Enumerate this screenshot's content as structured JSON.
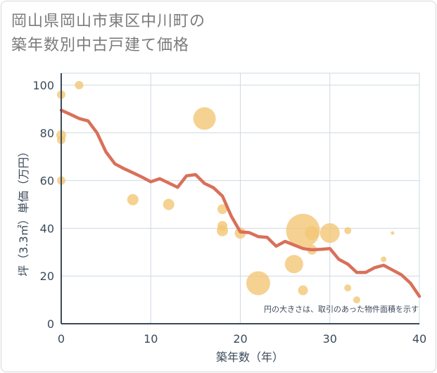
{
  "title_lines": [
    "岡山県岡山市東区中川町の",
    "築年数別中古戸建て価格"
  ],
  "chart_data": {
    "type": "scatter",
    "title": "岡山県岡山市東区中川町の築年数別中古戸建て価格",
    "xlabel": "築年数（年）",
    "ylabel": "坪（3.3㎡）単価（万円）",
    "xlim": [
      0,
      40
    ],
    "ylim": [
      0,
      105
    ],
    "xticks": [
      0,
      10,
      20,
      30,
      40
    ],
    "yticks": [
      0,
      20,
      40,
      60,
      80,
      100
    ],
    "grid": true,
    "note": "円の大きさは、取引のあった物件面積を示す",
    "colors": {
      "bubble": "#f3c777",
      "line": "#d9705a",
      "grid": "#cfd8e2",
      "axis": "#3b4a5a"
    },
    "bubbles": [
      {
        "x": 0,
        "y": 96,
        "size": 6
      },
      {
        "x": 0,
        "y": 79,
        "size": 7
      },
      {
        "x": 0,
        "y": 77,
        "size": 6
      },
      {
        "x": 0,
        "y": 60,
        "size": 6
      },
      {
        "x": 2,
        "y": 100,
        "size": 6
      },
      {
        "x": 8,
        "y": 52,
        "size": 8
      },
      {
        "x": 12,
        "y": 50,
        "size": 8
      },
      {
        "x": 16,
        "y": 86,
        "size": 16
      },
      {
        "x": 18,
        "y": 48,
        "size": 7
      },
      {
        "x": 18,
        "y": 41,
        "size": 7
      },
      {
        "x": 18,
        "y": 39,
        "size": 8
      },
      {
        "x": 20,
        "y": 38,
        "size": 8
      },
      {
        "x": 22,
        "y": 17,
        "size": 17
      },
      {
        "x": 26,
        "y": 25,
        "size": 13
      },
      {
        "x": 27,
        "y": 14,
        "size": 7
      },
      {
        "x": 27,
        "y": 39,
        "size": 24
      },
      {
        "x": 28,
        "y": 38,
        "size": 10
      },
      {
        "x": 28,
        "y": 31,
        "size": 7
      },
      {
        "x": 30,
        "y": 38,
        "size": 14
      },
      {
        "x": 32,
        "y": 39,
        "size": 5
      },
      {
        "x": 32,
        "y": 15,
        "size": 5
      },
      {
        "x": 33,
        "y": 10,
        "size": 5
      },
      {
        "x": 36,
        "y": 27,
        "size": 4
      },
      {
        "x": 37,
        "y": 38,
        "size": 2.5
      }
    ],
    "trend": {
      "x": [
        0,
        1,
        2,
        3,
        4,
        5,
        6,
        7,
        8,
        9,
        10,
        11,
        12,
        13,
        14,
        15,
        16,
        17,
        18,
        19,
        20,
        21,
        22,
        23,
        24,
        25,
        26,
        27,
        28,
        29,
        30,
        31,
        32,
        33,
        34,
        35,
        36,
        37,
        38,
        39,
        40
      ],
      "y": [
        89.5,
        87.8,
        86,
        85,
        80,
        72,
        67,
        65,
        63.3,
        61.5,
        59.5,
        60.8,
        59,
        57.2,
        62,
        62.5,
        58.8,
        57,
        53.5,
        45,
        38.5,
        38.2,
        36.5,
        36.2,
        32.5,
        34.5,
        33,
        31.5,
        31,
        31.2,
        31.5,
        27,
        25,
        21.5,
        21.5,
        23.5,
        24.5,
        22.5,
        20.5,
        17,
        11.5
      ]
    }
  }
}
